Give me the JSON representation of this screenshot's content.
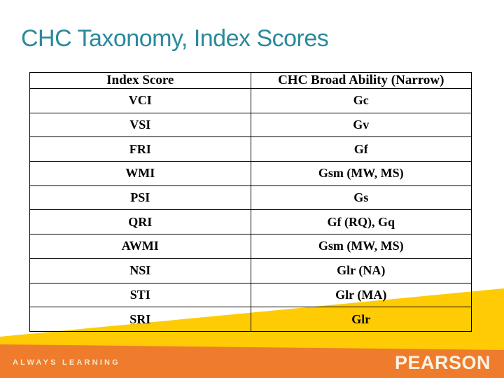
{
  "title": "CHC Taxonomy, Index Scores",
  "table": {
    "headers": [
      "Index Score",
      "CHC Broad Ability (Narrow)"
    ],
    "rows": [
      [
        "VCI",
        "Gc"
      ],
      [
        "VSI",
        "Gv"
      ],
      [
        "FRI",
        "Gf"
      ],
      [
        "WMI",
        "Gsm (MW, MS)"
      ],
      [
        "PSI",
        "Gs"
      ],
      [
        "QRI",
        "Gf (RQ), Gq"
      ],
      [
        "AWMI",
        "Gsm (MW, MS)"
      ],
      [
        "NSI",
        "Glr (NA)"
      ],
      [
        "STI",
        "Glr (MA)"
      ],
      [
        "SRI",
        "Glr"
      ]
    ]
  },
  "footer": {
    "tagline": "ALWAYS LEARNING",
    "brand": "PEARSON"
  },
  "colors": {
    "title_teal": "#2A8A9B",
    "accent_yellow": "#FECB05",
    "brand_orange": "#EF7B2C",
    "table_border": "#000000",
    "footer_cream": "#F3E7C9",
    "footer_cream_bright": "#FAF3E3"
  }
}
